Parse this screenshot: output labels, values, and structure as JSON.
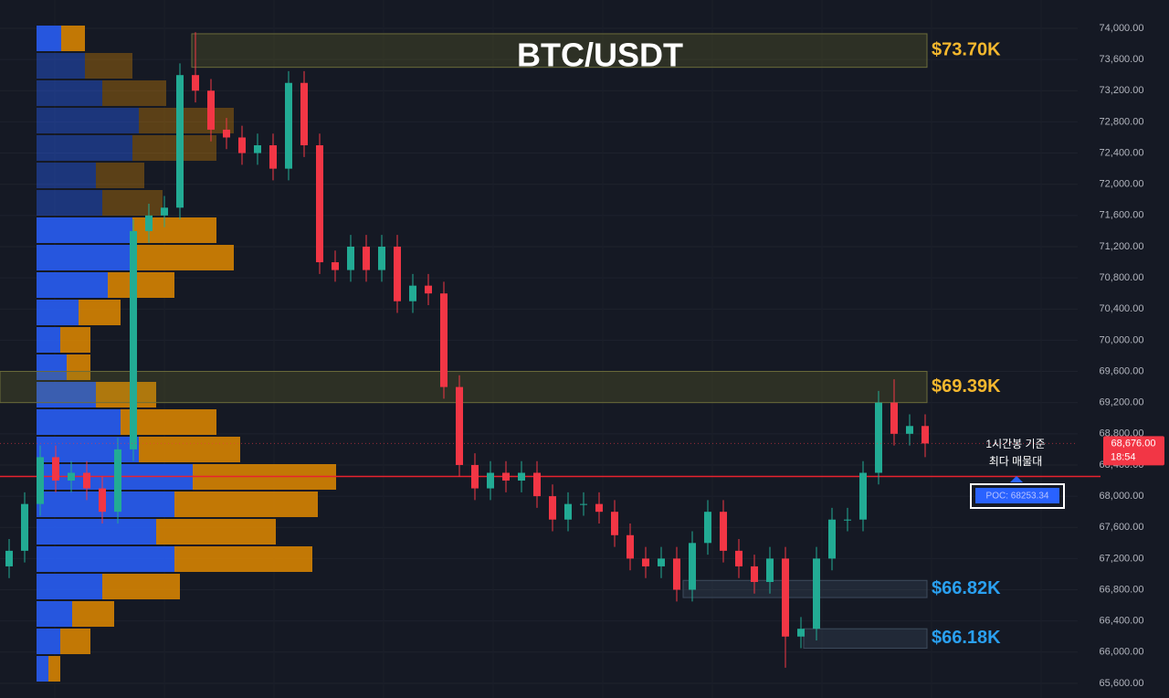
{
  "chart_data": {
    "type": "candlestick",
    "title": "BTC/USDT",
    "ylim": [
      65412,
      74363
    ],
    "yticks": [
      {
        "value": 65600,
        "label": "65,600.00"
      },
      {
        "value": 66000,
        "label": "66,000.00"
      },
      {
        "value": 66400,
        "label": "66,400.00"
      },
      {
        "value": 66800,
        "label": "66,800.00"
      },
      {
        "value": 67200,
        "label": "67,200.00"
      },
      {
        "value": 67600,
        "label": "67,600.00"
      },
      {
        "value": 68000,
        "label": "68,000.00"
      },
      {
        "value": 68400,
        "label": "68,400.00"
      },
      {
        "value": 68800,
        "label": "68,800.00"
      },
      {
        "value": 69200,
        "label": "69,200.00"
      },
      {
        "value": 69600,
        "label": "69,600.00"
      },
      {
        "value": 70000,
        "label": "70,000.00"
      },
      {
        "value": 70400,
        "label": "70,400.00"
      },
      {
        "value": 70800,
        "label": "70,800.00"
      },
      {
        "value": 71200,
        "label": "71,200.00"
      },
      {
        "value": 71600,
        "label": "71,600.00"
      },
      {
        "value": 72000,
        "label": "72,000.00"
      },
      {
        "value": 72400,
        "label": "72,400.00"
      },
      {
        "value": 72800,
        "label": "72,800.00"
      },
      {
        "value": 73200,
        "label": "73,200.00"
      },
      {
        "value": 73600,
        "label": "73,600.00"
      },
      {
        "value": 74000,
        "label": "74,000.00"
      }
    ],
    "grid": true,
    "up_color": "#22ab94",
    "down_color": "#f23645",
    "open": [
      67100,
      67300,
      67900,
      68500,
      68200,
      68300,
      68100,
      67800,
      68600,
      71400,
      71600,
      71700,
      73400,
      73200,
      72700,
      72600,
      72400,
      72500,
      72200,
      73300,
      72500,
      71000,
      70900,
      71200,
      70900,
      71200,
      70500,
      70700,
      70600,
      69400,
      68400,
      68100,
      68300,
      68200,
      68300,
      68000,
      67700,
      67900,
      67900,
      67800,
      67500,
      67200,
      67100,
      67200,
      66800,
      67400,
      67800,
      67300,
      67100,
      66900,
      67200,
      66200,
      66300,
      67200,
      67700,
      67700,
      68300,
      69200,
      68800,
      68900
    ],
    "high": [
      67450,
      68050,
      68650,
      68650,
      68450,
      68450,
      68250,
      68750,
      71550,
      71750,
      71850,
      73550,
      73950,
      73350,
      72850,
      72750,
      72650,
      72650,
      73450,
      73450,
      72650,
      71150,
      71350,
      71350,
      71350,
      71350,
      70850,
      70850,
      70750,
      69550,
      68550,
      68450,
      68450,
      68450,
      68450,
      68150,
      68050,
      68050,
      68050,
      67950,
      67650,
      67350,
      67350,
      67350,
      67550,
      67950,
      67950,
      67450,
      67250,
      67350,
      67350,
      66450,
      67350,
      67850,
      67850,
      68450,
      69350,
      69500,
      69050,
      69050
    ],
    "low": [
      66950,
      67150,
      67750,
      68050,
      68050,
      67950,
      67650,
      67650,
      68450,
      71250,
      71450,
      71550,
      73050,
      72550,
      72450,
      72250,
      72250,
      72050,
      72050,
      72350,
      70850,
      70750,
      70750,
      70750,
      70750,
      70350,
      70350,
      70450,
      69250,
      68250,
      67950,
      67950,
      68050,
      68050,
      67850,
      67550,
      67550,
      67750,
      67650,
      67350,
      67050,
      66950,
      66950,
      66650,
      66650,
      67250,
      67150,
      66950,
      66750,
      66750,
      65800,
      66050,
      66150,
      67050,
      67550,
      67550,
      68150,
      68650,
      68650,
      68500
    ],
    "close": [
      67300,
      67900,
      68500,
      68200,
      68300,
      68100,
      67800,
      68600,
      71400,
      71600,
      71700,
      73400,
      73200,
      72700,
      72600,
      72400,
      72500,
      72200,
      73300,
      72500,
      71000,
      70900,
      71200,
      70900,
      71200,
      70500,
      70700,
      70600,
      69400,
      68400,
      68100,
      68300,
      68200,
      68300,
      68000,
      67700,
      67900,
      67900,
      67800,
      67500,
      67200,
      67100,
      67200,
      66800,
      67400,
      67800,
      67300,
      67100,
      66900,
      67200,
      66200,
      66300,
      67200,
      67700,
      67700,
      68300,
      69200,
      68800,
      68900,
      68676
    ],
    "volume_profile": {
      "buy_color": "#2962ff",
      "sell_color": "#e08a00",
      "buy": [
        27,
        53,
        72,
        112,
        105,
        65,
        72,
        105,
        105,
        78,
        46,
        26,
        33,
        65,
        92,
        112,
        171,
        151,
        131,
        151,
        72,
        39,
        26,
        13
      ],
      "sell": [
        26,
        52,
        70,
        104,
        92,
        53,
        66,
        92,
        111,
        73,
        46,
        33,
        26,
        66,
        105,
        111,
        157,
        157,
        131,
        151,
        85,
        46,
        33,
        13
      ]
    },
    "zones": [
      {
        "value": 73700,
        "label": "$73.70K",
        "top": 73930,
        "bottom": 73500,
        "color": "#f5b82e"
      },
      {
        "value": 69390,
        "label": "$69.39K",
        "top": 69600,
        "bottom": 69200,
        "color": "#f5b82e"
      },
      {
        "value": 66820,
        "label": "$66.82K",
        "top": 66920,
        "bottom": 66700,
        "color": "#2aa0f0"
      },
      {
        "value": 66180,
        "label": "$66.18K",
        "top": 66300,
        "bottom": 66050,
        "color": "#2aa0f0"
      }
    ],
    "poc": {
      "value": 68253.34,
      "label": "POC: 68253.34",
      "note": [
        "1시간봉 기준",
        "최다 매물대"
      ]
    },
    "last_price": {
      "value": 68676,
      "label": "68,676.00",
      "time": "18:54"
    }
  }
}
